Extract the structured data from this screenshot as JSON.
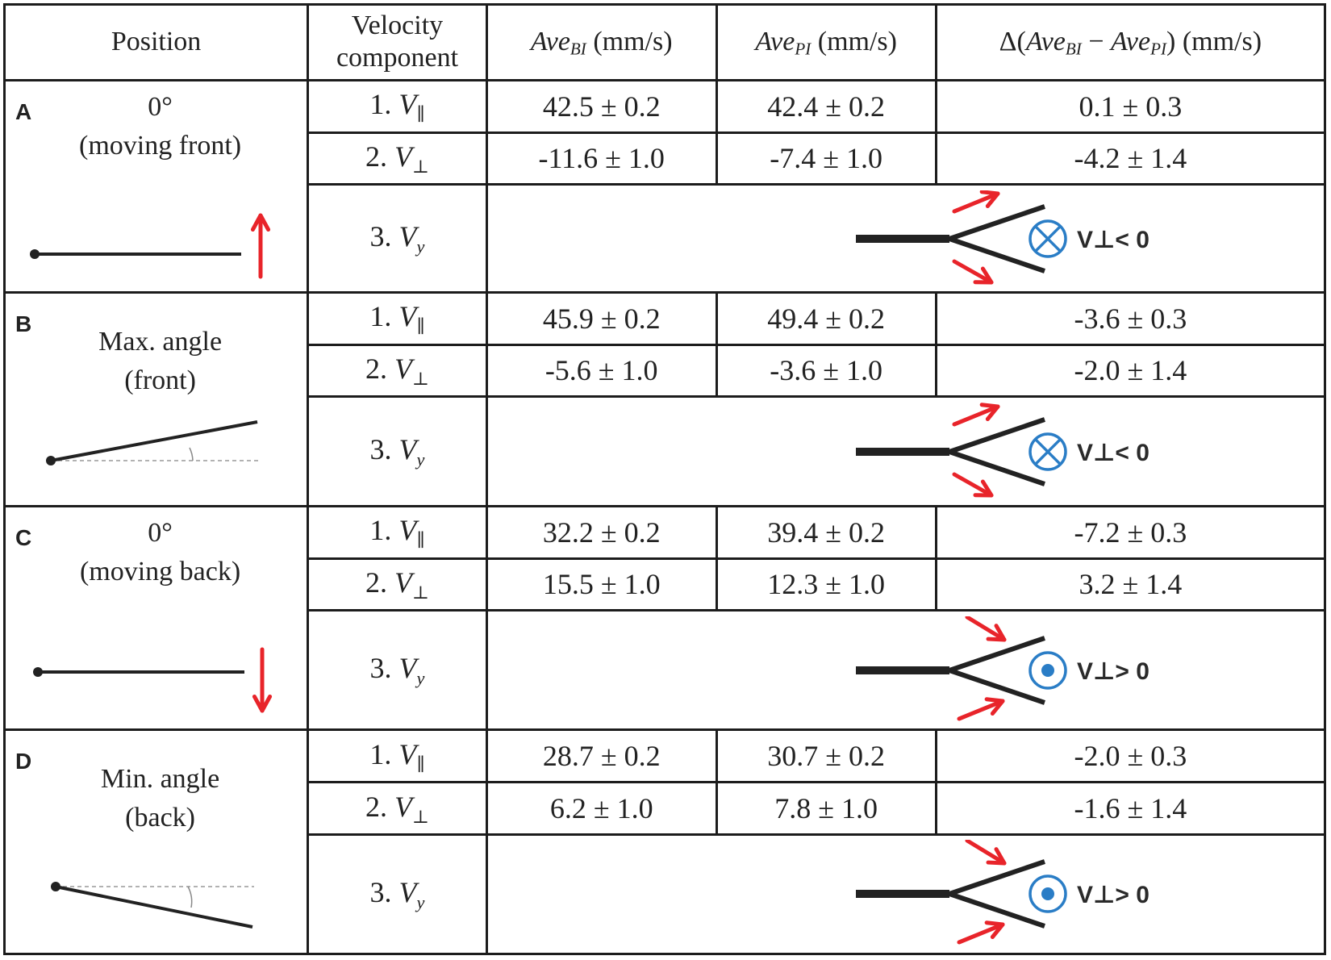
{
  "header": {
    "position": "Position",
    "velocity_line1": "Velocity",
    "velocity_line2": "component",
    "ave_bi_unit": "(mm/s)",
    "ave_pi_unit": "(mm/s)",
    "delta_unit": "(mm/s)"
  },
  "components": {
    "v_par": {
      "num": "1.",
      "sym": "V",
      "sub": "∥"
    },
    "v_perp": {
      "num": "2.",
      "sym": "V",
      "sub": "⊥"
    },
    "v_y": {
      "num": "3.",
      "sym": "V",
      "sub": "y"
    }
  },
  "positions": [
    {
      "letter": "A",
      "label_line1": "0°",
      "label_line2": "(moving front)",
      "v_par": {
        "bi": "42.5 ± 0.2",
        "pi": "42.4 ± 0.2",
        "delta": "0.1 ± 0.3"
      },
      "v_perp": {
        "bi": "-11.6 ± 1.0",
        "pi": "-7.4 ± 1.0",
        "delta": "-4.2 ± 1.4"
      },
      "v_y_label": "V⊥< 0",
      "v_y_symbol": "circle-cross-icon",
      "arrows": "outward"
    },
    {
      "letter": "B",
      "label_line1": "Max. angle",
      "label_line2": "(front)",
      "v_par": {
        "bi": "45.9 ± 0.2",
        "pi": "49.4 ± 0.2",
        "delta": "-3.6 ± 0.3"
      },
      "v_perp": {
        "bi": "-5.6 ± 1.0",
        "pi": "-3.6 ± 1.0",
        "delta": "-2.0 ± 1.4"
      },
      "v_y_label": "V⊥< 0",
      "v_y_symbol": "circle-cross-icon",
      "arrows": "outward"
    },
    {
      "letter": "C",
      "label_line1": "0°",
      "label_line2": "(moving back)",
      "v_par": {
        "bi": "32.2 ± 0.2",
        "pi": "39.4 ± 0.2",
        "delta": "-7.2 ± 0.3"
      },
      "v_perp": {
        "bi": "15.5 ± 1.0",
        "pi": "12.3 ± 1.0",
        "delta": "3.2 ± 1.4"
      },
      "v_y_label": "V⊥> 0",
      "v_y_symbol": "circle-dot-icon",
      "arrows": "inward"
    },
    {
      "letter": "D",
      "label_line1": "Min. angle",
      "label_line2": "(back)",
      "v_par": {
        "bi": "28.7 ± 0.2",
        "pi": "30.7 ± 0.2",
        "delta": "-2.0 ± 0.3"
      },
      "v_perp": {
        "bi": "6.2 ± 1.0",
        "pi": "7.8 ± 1.0",
        "delta": "-1.6 ± 1.4"
      },
      "v_y_label": "V⊥> 0",
      "v_y_symbol": "circle-dot-icon",
      "arrows": "inward"
    }
  ],
  "colors": {
    "arrow": "#e8242a",
    "symbol": "#2a7dc6",
    "line": "#222222"
  }
}
